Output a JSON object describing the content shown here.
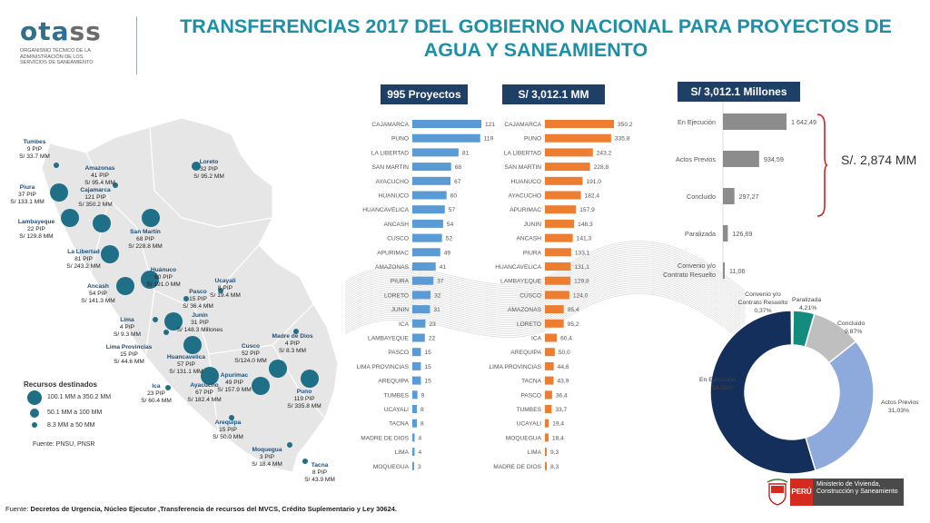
{
  "logo": {
    "word_a": "ota",
    "word_b": "ss",
    "subtitle": "ORGANISMO TÉCNICO DE LA ADMINISTRACIÓN DE LOS SERVICIOS DE SANEAMIENTO"
  },
  "title": "TRANSFERENCIAS 2017 DEL GOBIERNO NACIONAL PARA PROYECTOS DE AGUA Y SANEAMIENTO",
  "map": {
    "labels": [
      {
        "name": "Tumbes",
        "l2": "9 PIP",
        "l3": "S/ 33.7 MM"
      },
      {
        "name": "Amazonas",
        "l2": "41 PIP",
        "l3": "S/  95.4 MM"
      },
      {
        "name": "Loreto",
        "l2": "32 PIP",
        "l3": "S/ 95.2 MM"
      },
      {
        "name": "Piura",
        "l2": "37 PIP",
        "l3": "S/ 133.1 MM"
      },
      {
        "name": "Cajamarca",
        "l2": "121 PIP",
        "l3": "S/  350.2 MM"
      },
      {
        "name": "Lambayeque",
        "l2": "22 PIP",
        "l3": "S/ 129.8 MM"
      },
      {
        "name": "San Martín",
        "l2": "68 PIP",
        "l3": "S/  228.8 MM"
      },
      {
        "name": "La Libertad",
        "l2": "81 PIP",
        "l3": "S/ 243.2 MM"
      },
      {
        "name": "Huánuco",
        "l2": "60 PIP",
        "l3": "S/ 191.0 MM"
      },
      {
        "name": "Ancash",
        "l2": "54 PIP",
        "l3": "S/  141.3 MM"
      },
      {
        "name": "Ucayali",
        "l2": "8 PIP",
        "l3": "S/ 19.4 MM"
      },
      {
        "name": "Pasco",
        "l2": "15 PIP",
        "l3": "S/ 36.4 MM"
      },
      {
        "name": "Lima",
        "l2": "4 PIP",
        "l3": "S/ 9.3 MM"
      },
      {
        "name": "Junín",
        "l2": "31 PIP",
        "l3": "S/ 148.3 Millones"
      },
      {
        "name": "Lima Provincias",
        "l2": "15 PIP",
        "l3": "S/ 44.6 MM"
      },
      {
        "name": "Madre de Dios",
        "l2": "4 PIP",
        "l3": "S/ 8.3 MM"
      },
      {
        "name": "Cusco",
        "l2": "52 PIP",
        "l3": "S/124.0 MM"
      },
      {
        "name": "Huancavelica",
        "l2": "57 PIP",
        "l3": "S/ 131.1 MM"
      },
      {
        "name": "Apurímac",
        "l2": "49 PIP",
        "l3": "S/  157.9 MM"
      },
      {
        "name": "Ica",
        "l2": "23 PIP",
        "l3": "S/ 60.4 MM"
      },
      {
        "name": "Ayacucho",
        "l2": "67 PIP",
        "l3": "S/ 182.4 MM"
      },
      {
        "name": "Puno",
        "l2": "119 PIP",
        "l3": "S/ 335.8 MM"
      },
      {
        "name": "Arequipa",
        "l2": "15 PIP",
        "l3": "S/  50.0 MM"
      },
      {
        "name": "Moquegua",
        "l2": "3 PIP",
        "l3": "S/ 18.4 MM"
      },
      {
        "name": "Tacna",
        "l2": "8 PIP",
        "l3": "S/  43.9 MM"
      }
    ],
    "legend_title": "Recursos destinados",
    "legend": [
      "100.1 MM a 350.2 MM",
      "50.1 MM a 100 MM",
      "8.3 MM a 50 MM"
    ],
    "source": "Fuente: PNSU, PNSR",
    "colors": {
      "map": "#e6e6e6",
      "bubble": "#1f6f86"
    }
  },
  "chart_data": [
    {
      "type": "bar",
      "title": "995 Proyectos",
      "color": "#5b9bd5",
      "categories": [
        "CAJAMARCA",
        "PUNO",
        "LA LIBERTAD",
        "SAN MARTIN",
        "AYACUCHO",
        "HUANUCO",
        "HUANCAVELICA",
        "ANCASH",
        "CUSCO",
        "APURIMAC",
        "AMAZONAS",
        "PIURA",
        "LORETO",
        "JUNIN",
        "ICA",
        "LAMBAYEQUE",
        "PASCO",
        "LIMA PROVINCIAS",
        "AREQUIPA",
        "TUMBES",
        "UCAYALI",
        "TACNA",
        "MADRE DE DIOS",
        "LIMA",
        "MOQUEGUA"
      ],
      "values": [
        121,
        119,
        81,
        68,
        67,
        60,
        57,
        54,
        52,
        49,
        41,
        37,
        32,
        31,
        23,
        22,
        15,
        15,
        15,
        9,
        8,
        8,
        4,
        4,
        3
      ],
      "labels": [
        "121",
        "119",
        "81",
        "68",
        "67",
        "60",
        "57",
        "54",
        "52",
        "49",
        "41",
        "37",
        "32",
        "31",
        "23",
        "22",
        "15",
        "15",
        "15",
        "9",
        "8",
        "8",
        "4",
        "4",
        "3"
      ]
    },
    {
      "type": "bar",
      "title": "S/ 3,012.1 MM",
      "color": "#ed7d31",
      "categories": [
        "CAJAMARCA",
        "PUNO",
        "LA LIBERTAD",
        "SAN MARTIN",
        "HUANUCO",
        "AYACUCHO",
        "APURIMAC",
        "JUNIN",
        "ANCASH",
        "PIURA",
        "HUANCAVELICA",
        "LAMBAYEQUE",
        "CUSCO",
        "AMAZONAS",
        "LORETO",
        "ICA",
        "AREQUIPA",
        "LIMA PROVINCIAS",
        "TACNA",
        "PASCO",
        "TUMBES",
        "UCAYALI",
        "MOQUEGUA",
        "LIMA",
        "MADRE DE DIOS"
      ],
      "values": [
        350.2,
        335.8,
        243.2,
        228.8,
        191.0,
        182.4,
        157.9,
        148.3,
        141.3,
        133.1,
        131.1,
        129.8,
        124.0,
        95.4,
        95.2,
        60.4,
        50.0,
        44.6,
        43.9,
        36.4,
        33.7,
        19.4,
        18.4,
        9.3,
        8.3
      ],
      "labels": [
        "350,2",
        "335,8",
        "243,2",
        "228,8",
        "191,0",
        "182,4",
        "157,9",
        "148,3",
        "141,3",
        "133,1",
        "131,1",
        "129,8",
        "124,0",
        "95,4",
        "95,2",
        "60,4",
        "50,0",
        "44,6",
        "43,9",
        "36,4",
        "33,7",
        "19,4",
        "18,4",
        "9,3",
        "8,3"
      ]
    },
    {
      "type": "bar",
      "title": "S/ 3,012.1 Millones",
      "color": "#8c8c8c",
      "categories": [
        "En Ejecución",
        "Actos Previos",
        "Concluido",
        "Paralizada",
        "Convenio y/o Contrato Resuelto"
      ],
      "values": [
        1642.49,
        934.59,
        297.27,
        126.69,
        11.06
      ],
      "labels": [
        "1 642,49",
        "934,59",
        "297,27",
        "126,69",
        "11,06"
      ],
      "bracket_label": "S/. 2,874 MM"
    },
    {
      "type": "pie",
      "categories": [
        "En Ejecución",
        "Actos Previos",
        "Concluido",
        "Paralizada",
        "Convenio y/o Contrato Resuelto"
      ],
      "values": [
        54.53,
        31.03,
        9.87,
        4.21,
        0.37
      ],
      "labels": [
        "54,53%",
        "31,03%",
        "9,87%",
        "4,21%",
        "0,37%"
      ],
      "colors": [
        "#152f5c",
        "#8ea9db",
        "#bfbfbf",
        "#138c7d",
        "#dcd0a3"
      ]
    }
  ],
  "footer": {
    "prefix": "Fuente: ",
    "text": "Decretos de Urgencia, Núcleo Ejecutor ,Transferencia de recursos del MVCS, Crédito Suplementario y Ley 30624."
  },
  "branding": {
    "country": "PERÚ",
    "ministry": "Ministerio de Vivienda, Construcción y Saneamiento"
  }
}
